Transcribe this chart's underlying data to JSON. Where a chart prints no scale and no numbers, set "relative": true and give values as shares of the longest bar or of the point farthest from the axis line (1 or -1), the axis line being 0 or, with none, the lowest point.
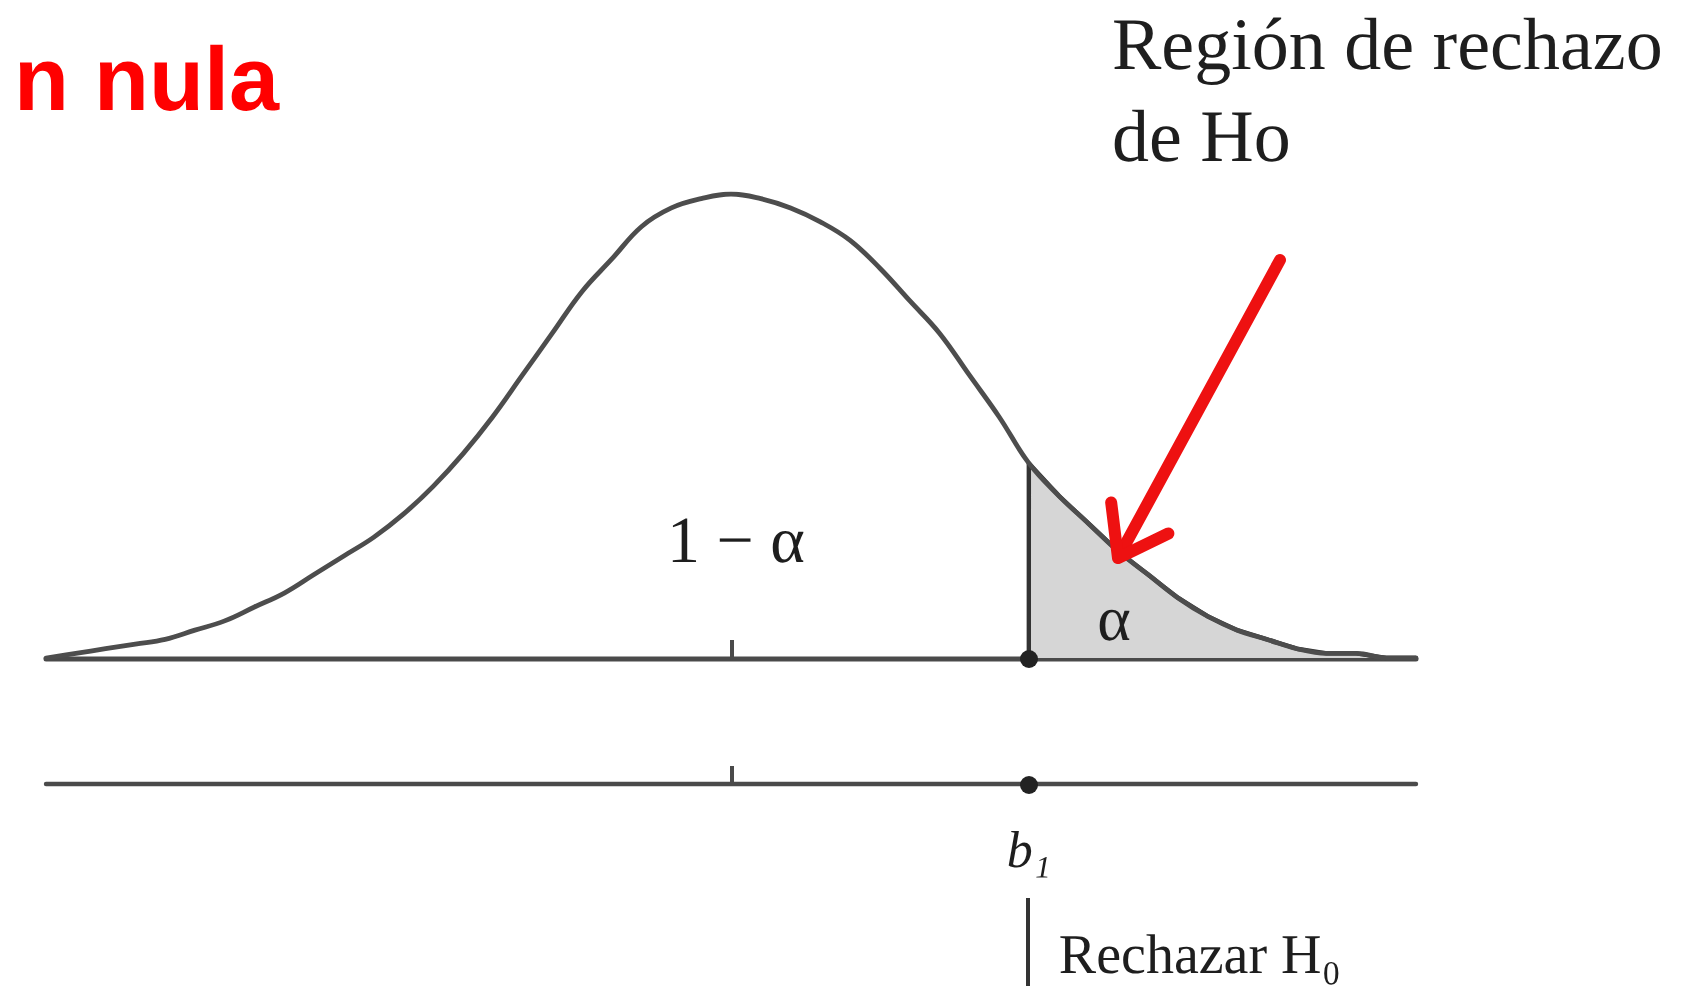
{
  "chart_data": {
    "type": "line",
    "title": "n nula",
    "relative": true,
    "categories": [
      null,
      null,
      null,
      null,
      null,
      null,
      null,
      null,
      null,
      null,
      null,
      null,
      null,
      null,
      null,
      null,
      null,
      null,
      null,
      null,
      null,
      null,
      null,
      null,
      null,
      null,
      null,
      null,
      null,
      null,
      null,
      null,
      null,
      null,
      null,
      null,
      null,
      null,
      null,
      null,
      null,
      null,
      null,
      null,
      null,
      null,
      null
    ],
    "series": [
      {
        "color": "#4d4d4d",
        "values": [
          0,
          0.01,
          0.02,
          0.03,
          0.04,
          0.06,
          0.08,
          0.11,
          0.14,
          0.18,
          0.22,
          0.26,
          0.31,
          0.37,
          0.44,
          0.52,
          0.61,
          0.7,
          0.79,
          0.86,
          0.93,
          0.97,
          0.99,
          1,
          0.99,
          0.97,
          0.94,
          0.9,
          0.84,
          0.77,
          0.7,
          0.61,
          0.52,
          0.42,
          0.35,
          0.29,
          0.23,
          0.18,
          0.13,
          0.09,
          0.06,
          0.04,
          0.02,
          0.01,
          0.01,
          0,
          0
        ]
      },
      {
        "type": "area",
        "color": "#d6d6d6",
        "values": [
          null,
          null,
          null,
          null,
          null,
          null,
          null,
          null,
          null,
          null,
          null,
          null,
          null,
          null,
          null,
          null,
          null,
          null,
          null,
          null,
          null,
          null,
          null,
          null,
          null,
          null,
          null,
          null,
          null,
          null,
          null,
          null,
          null,
          0.42,
          0.35,
          0.29,
          0.23,
          0.18,
          0.13,
          0.09,
          0.06,
          0.04,
          0.02,
          0.01,
          0.01,
          0,
          0
        ]
      }
    ],
    "annotations": [
      "1 − α",
      "α",
      "Región de rechazo de Ho",
      "b₁",
      "Rechazar H₀"
    ]
  }
}
